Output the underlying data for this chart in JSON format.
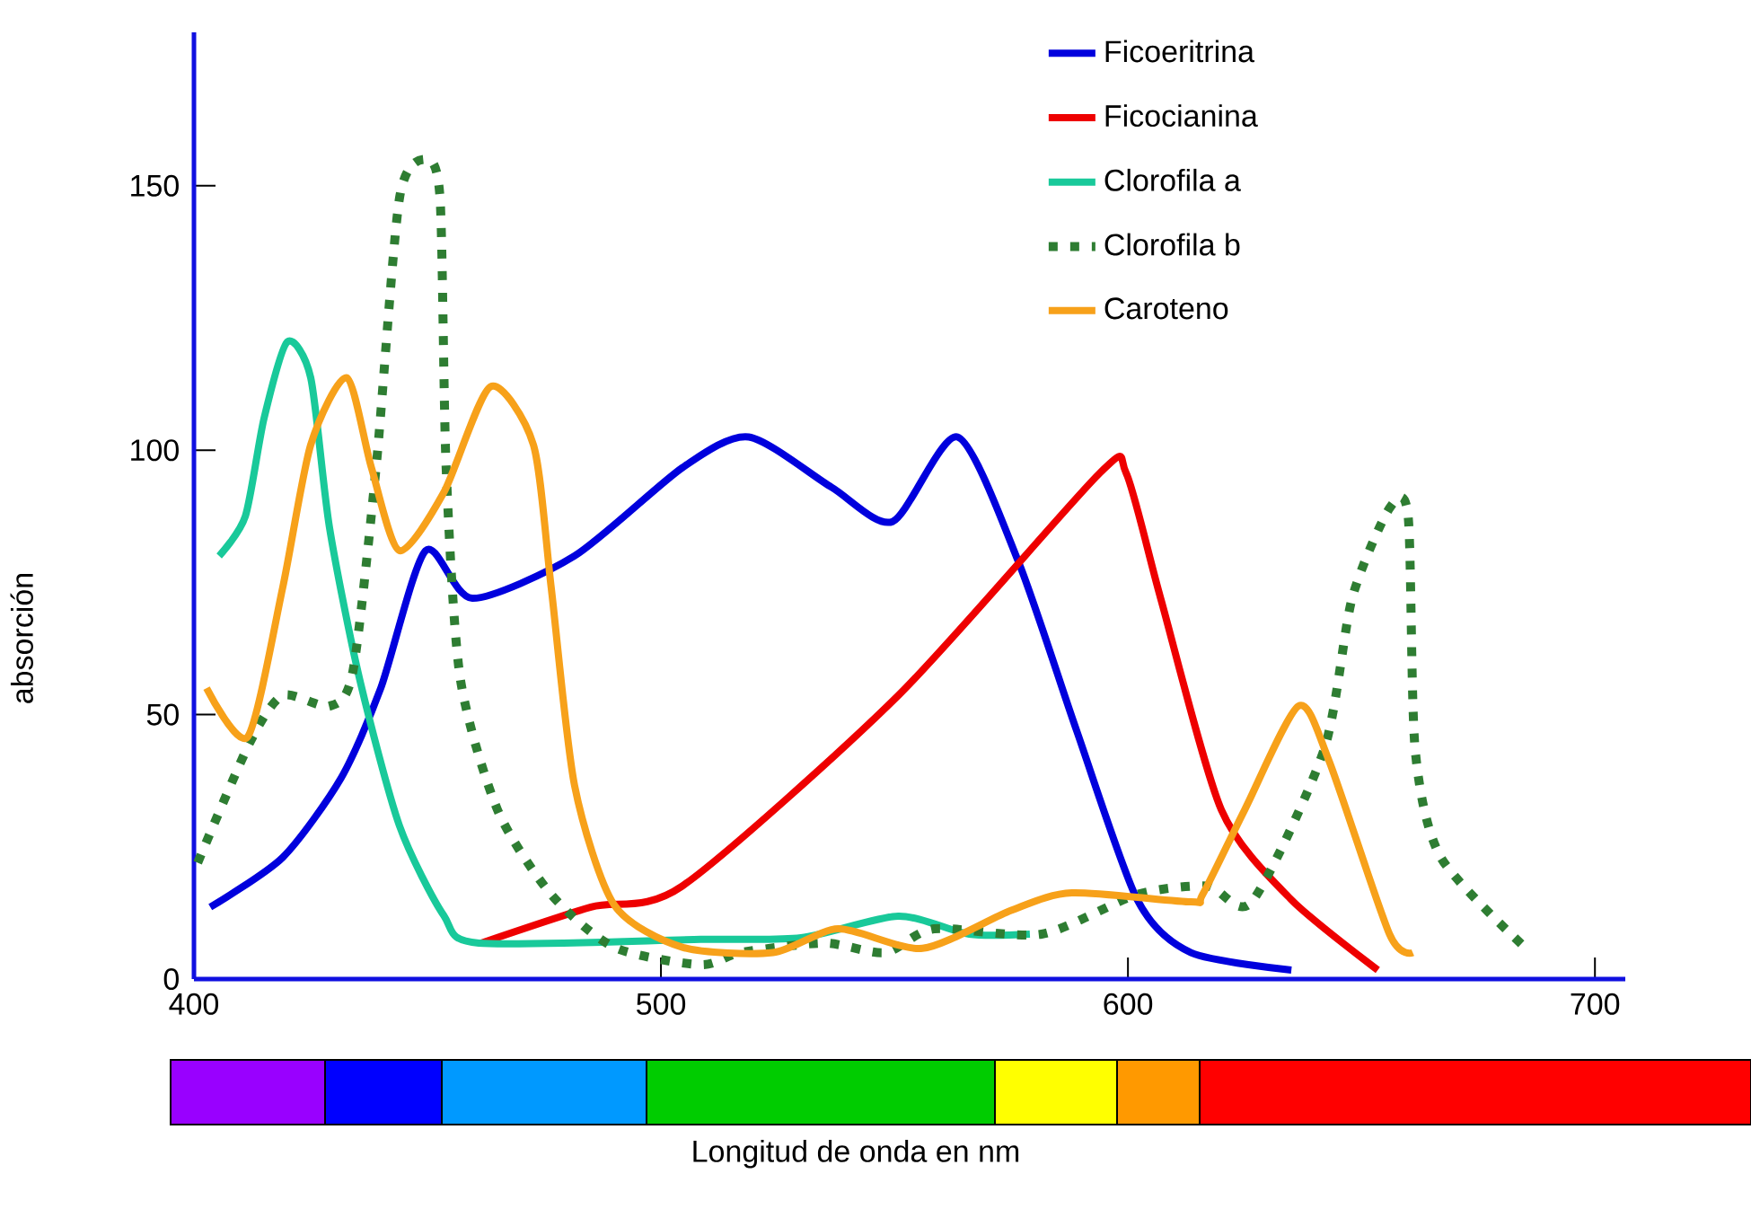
{
  "chart_data": {
    "type": "line",
    "xlabel": "Longitud de onda en  nm",
    "ylabel": "absorción",
    "xlim": [
      400,
      706.5
    ],
    "xticks": [
      400,
      500,
      600,
      700
    ],
    "ylim": [
      0,
      179
    ],
    "yticks": [
      0,
      50,
      100,
      150
    ],
    "grid": false,
    "legend": "top right",
    "marker": "none",
    "series": [
      {
        "name": "Ficoeritrina",
        "color": "#0000dd",
        "line_style": "solid",
        "x": [
          403.5,
          419,
          431.5,
          440,
          449.6,
          459.6,
          481.5,
          504.6,
          518.8,
          536.5,
          549.6,
          563.5,
          576.5,
          589,
          602,
          613.5,
          635
        ],
        "values": [
          13.6,
          23,
          38,
          55,
          81,
          72,
          80,
          96.7,
          102.5,
          93,
          86.5,
          102.5,
          79,
          47,
          15,
          5,
          1.7
        ]
      },
      {
        "name": "Ficocianina",
        "color": "#ee0000",
        "line_style": "solid",
        "x": [
          461.5,
          485,
          504.6,
          550.8,
          594,
          599.6,
          607,
          620,
          635,
          653.5
        ],
        "values": [
          6.8,
          13.6,
          17.6,
          53.6,
          95.7,
          95.7,
          72,
          32,
          15,
          1.7
        ]
      },
      {
        "name": "Clorofila a",
        "color": "#19c99a",
        "line_style": "solid",
        "x": [
          405.4,
          411,
          415,
          420,
          425,
          429,
          435.4,
          444,
          453.5,
          461,
          508.5,
          530,
          550.8,
          566,
          579
        ],
        "values": [
          80,
          87.5,
          106,
          120.5,
          113.7,
          85.5,
          57,
          29,
          12,
          6.8,
          7.5,
          7.8,
          11.9,
          8.5,
          8.5
        ]
      },
      {
        "name": "Clorofila b",
        "color": "#2e7d32",
        "line_style": "dotted",
        "x": [
          400.8,
          412,
          419,
          429,
          434,
          439,
          444,
          449.6,
          452.7,
          454,
          457,
          465,
          476.5,
          490,
          508.5,
          517,
          535,
          548,
          558.5,
          581.5,
          602,
          617,
          626.5,
          642,
          648,
          656,
          660,
          661.5,
          667,
          685
        ],
        "values": [
          22,
          44.8,
          53.6,
          51.6,
          58,
          96.7,
          147.6,
          155,
          147.6,
          96.7,
          57,
          32,
          16,
          6,
          2.7,
          5,
          6.8,
          5,
          9.5,
          8.5,
          16,
          17.6,
          14.6,
          43.4,
          72,
          89,
          87.5,
          43.4,
          23,
          6
        ]
      },
      {
        "name": "Caroteno",
        "color": "#f7a11a",
        "line_style": "solid",
        "x": [
          402.7,
          411.5,
          419,
          425,
          432.7,
          438,
          444,
          453.5,
          463.5,
          472.7,
          476.5,
          481.5,
          490,
          504.6,
          524,
          538,
          556,
          575,
          588,
          613.5,
          616,
          625,
          636.5,
          643,
          656,
          661
        ],
        "values": [
          55,
          45.8,
          74,
          101,
          113.7,
          96.7,
          81,
          92,
          112,
          101,
          74,
          36.6,
          14,
          6,
          5,
          9.5,
          5.8,
          13,
          16.3,
          14.6,
          16,
          32,
          51.6,
          41.4,
          8.5,
          5
        ]
      }
    ]
  }
}
